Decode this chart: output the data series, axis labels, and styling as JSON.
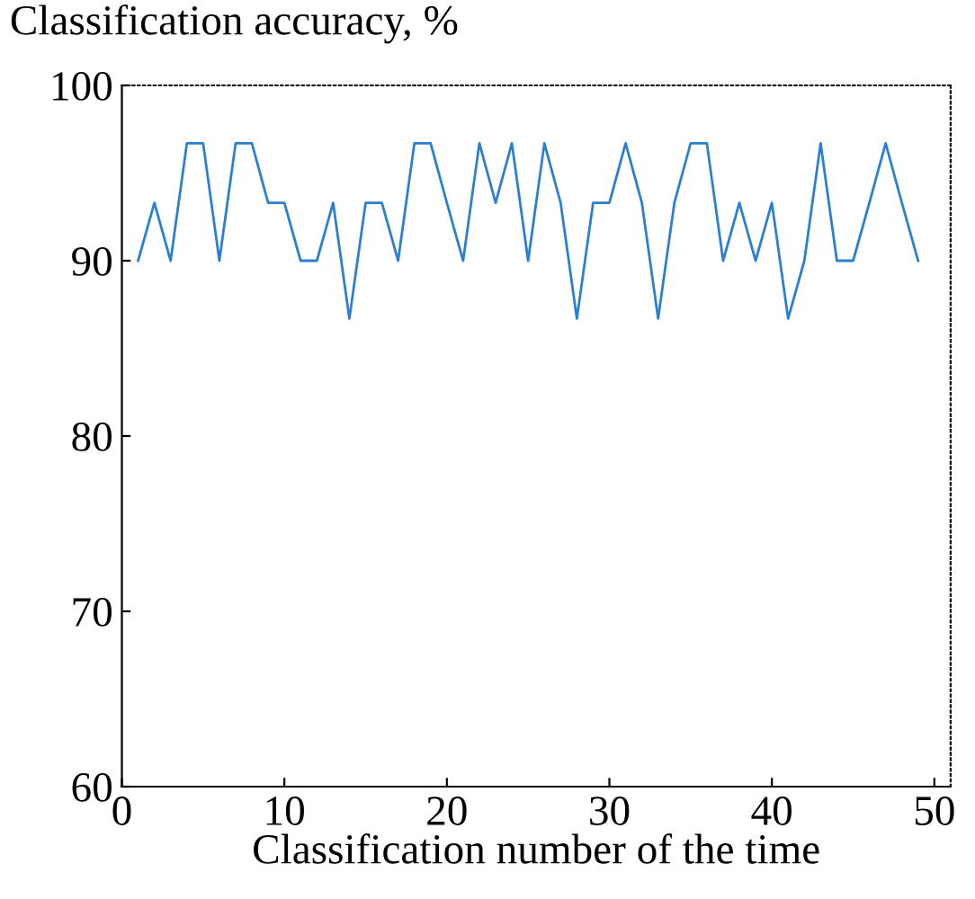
{
  "chart_data": {
    "type": "line",
    "ylabel": "Classification accuracy, %",
    "xlabel": "Classification number of the time",
    "x": [
      1,
      2,
      3,
      4,
      5,
      6,
      7,
      8,
      9,
      10,
      11,
      12,
      13,
      14,
      15,
      16,
      17,
      18,
      19,
      20,
      21,
      22,
      23,
      24,
      25,
      26,
      27,
      28,
      29,
      30,
      31,
      32,
      33,
      34,
      35,
      36,
      37,
      38,
      39,
      40,
      41,
      42,
      43,
      44,
      45,
      46,
      47,
      48,
      49
    ],
    "series": [
      {
        "color": "#2b7fd3",
        "values": [
          90,
          93.3,
          90,
          96.7,
          96.7,
          90,
          96.7,
          96.7,
          93.3,
          93.3,
          90,
          90,
          93.3,
          86.7,
          93.3,
          93.3,
          90,
          96.7,
          96.7,
          93.3,
          90,
          96.7,
          93.3,
          96.7,
          90,
          96.7,
          93.3,
          86.7,
          93.3,
          93.3,
          96.7,
          93.3,
          86.7,
          93.3,
          96.7,
          96.7,
          90,
          93.3,
          90,
          93.3,
          86.7,
          90,
          96.7,
          90,
          90,
          93.3,
          96.7,
          93.3,
          90
        ]
      }
    ],
    "xlim": [
      0,
      51
    ],
    "xticks": [
      0,
      10,
      20,
      30,
      40,
      50
    ],
    "ylim": [
      60,
      100
    ],
    "yticks": [
      60,
      70,
      80,
      90,
      100
    ],
    "grid": false,
    "legend": false,
    "marker": "none",
    "line_style": "solid"
  }
}
